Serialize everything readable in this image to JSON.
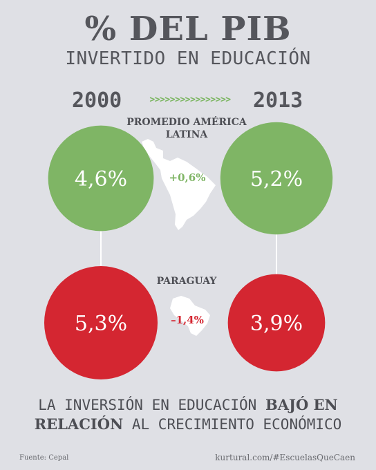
{
  "title": "% DEL PIB",
  "subtitle": "INVERTIDO EN EDUCACIÓN",
  "years": {
    "start": "2000",
    "arrows": ">>>>>>>>>>>>>>>>",
    "end": "2013"
  },
  "chart_data": {
    "type": "bubble",
    "title": "% DEL PIB",
    "subtitle": "INVERTIDO EN EDUCACIÓN",
    "x": [
      "2000",
      "2013"
    ],
    "series": [
      {
        "name": "PROMEDIO AMÉRICA LATINA",
        "values": [
          4.6,
          5.2
        ],
        "labels": [
          "4,6%",
          "5,2%"
        ],
        "change": "+0,6%",
        "color": "#7fb565"
      },
      {
        "name": "PARAGUAY",
        "values": [
          5.3,
          3.9
        ],
        "labels": [
          "5,3%",
          "3,9%"
        ],
        "change": "–1,4%",
        "color": "#d42631"
      }
    ]
  },
  "colors": {
    "green": "#7fb565",
    "red": "#d42631",
    "text": "#4d4e54",
    "line": "#ffffff"
  },
  "bottom_text": {
    "part1": "LA INVERSIÓN EN EDUCACIÓN ",
    "bold1": "BAJÓ EN",
    "bold2": "RELACIÓN",
    "part2": " AL CRECIMIENTO ECONÓMICO"
  },
  "footer": {
    "source": "Fuente: Cepal",
    "credit": "kurtural.com/#EscuelasQueCaen"
  }
}
